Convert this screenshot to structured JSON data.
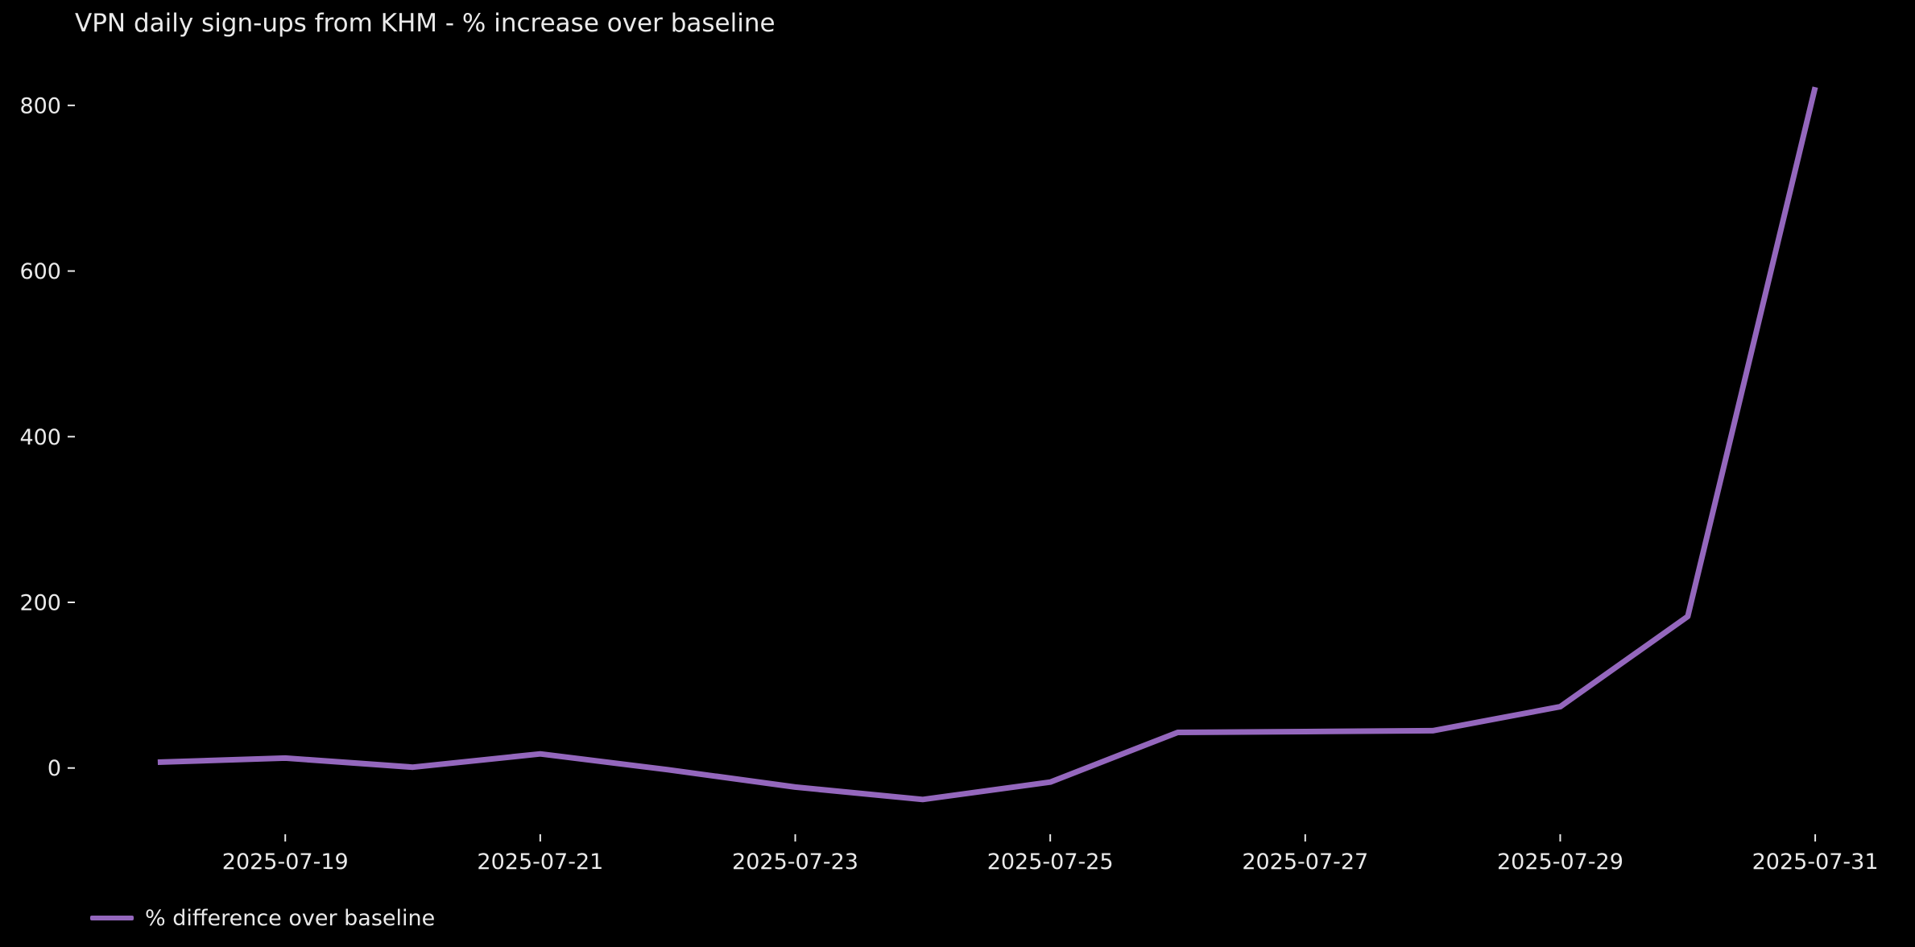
{
  "page": {
    "background": "#000000",
    "text_color": "#eaeaea"
  },
  "chart_data": {
    "type": "line",
    "title": "VPN daily sign-ups from KHM - % increase over baseline",
    "x": [
      "2025-07-18",
      "2025-07-19",
      "2025-07-20",
      "2025-07-21",
      "2025-07-22",
      "2025-07-23",
      "2025-07-24",
      "2025-07-25",
      "2025-07-26",
      "2025-07-27",
      "2025-07-28",
      "2025-07-29",
      "2025-07-30",
      "2025-07-31"
    ],
    "series": [
      {
        "name": "% difference over baseline",
        "color": "#9467bd",
        "values": [
          7,
          12,
          1,
          17,
          -2,
          -23,
          -38,
          -17,
          43,
          44,
          45,
          74,
          183,
          822
        ]
      }
    ],
    "x_tick_labels": [
      "2025-07-19",
      "2025-07-21",
      "2025-07-23",
      "2025-07-25",
      "2025-07-27",
      "2025-07-29",
      "2025-07-31"
    ],
    "y_ticks": [
      0,
      200,
      400,
      600,
      800
    ],
    "ylim": [
      -80,
      865
    ],
    "xlabel": "",
    "ylabel": "",
    "grid": false,
    "legend_position": "lower-left",
    "axis_text_color": "#eaeaea"
  }
}
